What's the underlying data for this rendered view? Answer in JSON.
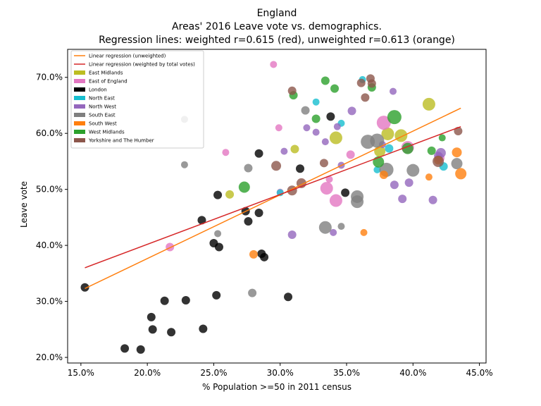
{
  "chart_data": {
    "type": "scatter",
    "title": "England",
    "subtitle": "Areas' 2016 Leave vote vs. demographics.",
    "subtitle2": "Regression lines: weighted r=0.615 (red), unweighted r=0.613 (orange)",
    "xlabel": "% Population >=50 in 2011 census",
    "ylabel": "Leave vote",
    "xlim": [
      14,
      45.5
    ],
    "ylim": [
      19,
      75
    ],
    "x_ticks": [
      "15.0%",
      "20.0%",
      "25.0%",
      "30.0%",
      "35.0%",
      "40.0%",
      "45.0%"
    ],
    "x_tick_values": [
      15,
      20,
      25,
      30,
      35,
      40,
      45
    ],
    "y_ticks": [
      "20.0%",
      "30.0%",
      "40.0%",
      "50.0%",
      "60.0%",
      "70.0%"
    ],
    "y_tick_values": [
      20,
      30,
      40,
      50,
      60,
      70
    ],
    "grid": false,
    "legend_position": "top-left",
    "regression_lines": [
      {
        "name": "Linear regression (unweighted)",
        "color": "#ff7f0e",
        "x": [
          15.3,
          43.6
        ],
        "y": [
          32.3,
          64.5
        ]
      },
      {
        "name": "Linear regression (weighted by total votes)",
        "color": "#d62728",
        "x": [
          15.3,
          43.6
        ],
        "y": [
          36.0,
          61.2
        ]
      }
    ],
    "series": [
      {
        "name": "East Midlands",
        "color": "#bcbd22",
        "points": [
          [
            26.2,
            49.1,
            6
          ],
          [
            31.1,
            57.2,
            6
          ],
          [
            34.2,
            59.2,
            9
          ],
          [
            37.5,
            56.8,
            8
          ],
          [
            38.1,
            59.9,
            9
          ],
          [
            39.1,
            59.6,
            9
          ],
          [
            41.2,
            65.2,
            9
          ]
        ]
      },
      {
        "name": "East of England",
        "color": "#e377c2",
        "points": [
          [
            21.7,
            39.7,
            6
          ],
          [
            25.9,
            56.6,
            5
          ],
          [
            29.5,
            72.3,
            5
          ],
          [
            29.9,
            61.0,
            5
          ],
          [
            30.0,
            49.5,
            5
          ],
          [
            33.5,
            50.2,
            9
          ],
          [
            34.2,
            48.0,
            9
          ],
          [
            33.7,
            51.8,
            5
          ],
          [
            35.3,
            56.2,
            6
          ],
          [
            37.8,
            61.9,
            10
          ],
          [
            39.6,
            57.5,
            9
          ],
          [
            42.0,
            55.6,
            7
          ]
        ]
      },
      {
        "name": "London",
        "color": "#000000",
        "points": [
          [
            15.3,
            32.5,
            6
          ],
          [
            18.3,
            21.6,
            6
          ],
          [
            19.5,
            21.4,
            6
          ],
          [
            20.3,
            27.2,
            6
          ],
          [
            20.4,
            25.0,
            6
          ],
          [
            21.3,
            30.1,
            6
          ],
          [
            21.8,
            24.5,
            6
          ],
          [
            22.9,
            30.2,
            6
          ],
          [
            24.2,
            25.1,
            6
          ],
          [
            24.1,
            44.5,
            6
          ],
          [
            25.0,
            40.4,
            6
          ],
          [
            25.4,
            39.7,
            6
          ],
          [
            25.2,
            31.1,
            6
          ],
          [
            25.3,
            49.0,
            6
          ],
          [
            27.4,
            46.1,
            6
          ],
          [
            27.6,
            44.3,
            6
          ],
          [
            28.4,
            45.8,
            6
          ],
          [
            28.6,
            38.5,
            6
          ],
          [
            28.8,
            37.9,
            6
          ],
          [
            28.4,
            56.4,
            6
          ],
          [
            30.6,
            30.8,
            6
          ],
          [
            31.5,
            53.7,
            6
          ],
          [
            33.8,
            63.0,
            6
          ],
          [
            34.9,
            49.4,
            6
          ]
        ]
      },
      {
        "name": "North East",
        "color": "#17becf",
        "points": [
          [
            30.0,
            49.4,
            5
          ],
          [
            32.7,
            65.6,
            5
          ],
          [
            34.6,
            61.8,
            5
          ],
          [
            36.2,
            69.6,
            5
          ],
          [
            37.3,
            53.5,
            5
          ],
          [
            38.2,
            57.3,
            6
          ],
          [
            42.3,
            54.1,
            6
          ]
        ]
      },
      {
        "name": "North West",
        "color": "#9467bd",
        "points": [
          [
            30.3,
            56.8,
            5
          ],
          [
            32.0,
            61.0,
            5
          ],
          [
            32.7,
            60.2,
            5
          ],
          [
            33.4,
            58.5,
            5
          ],
          [
            34.0,
            42.3,
            5
          ],
          [
            34.3,
            61.2,
            5
          ],
          [
            34.6,
            54.3,
            5
          ],
          [
            35.4,
            64.0,
            6
          ],
          [
            37.7,
            58.0,
            5
          ],
          [
            38.5,
            67.5,
            5
          ],
          [
            38.6,
            50.8,
            6
          ],
          [
            39.2,
            48.3,
            6
          ],
          [
            39.7,
            51.2,
            6
          ],
          [
            30.9,
            41.9,
            6
          ],
          [
            41.5,
            48.1,
            6
          ],
          [
            41.9,
            56.0,
            6
          ],
          [
            42.1,
            56.5,
            7
          ]
        ]
      },
      {
        "name": "South East",
        "color": "#7f7f7f",
        "points": [
          [
            22.8,
            62.5,
            5
          ],
          [
            22.8,
            54.4,
            5
          ],
          [
            25.3,
            42.1,
            5
          ],
          [
            27.6,
            53.8,
            6
          ],
          [
            27.9,
            31.5,
            6
          ],
          [
            31.9,
            64.1,
            6
          ],
          [
            33.4,
            43.2,
            9
          ],
          [
            34.6,
            43.4,
            5
          ],
          [
            35.8,
            48.7,
            9
          ],
          [
            35.8,
            47.8,
            9
          ],
          [
            36.6,
            58.5,
            10
          ],
          [
            37.3,
            58.7,
            10
          ],
          [
            38.0,
            53.5,
            10
          ],
          [
            40.0,
            53.4,
            9
          ],
          [
            43.3,
            54.6,
            8
          ]
        ]
      },
      {
        "name": "South West",
        "color": "#ff7f0e",
        "points": [
          [
            28.0,
            38.4,
            6
          ],
          [
            36.3,
            42.3,
            5
          ],
          [
            37.8,
            52.6,
            6
          ],
          [
            41.2,
            52.2,
            5
          ],
          [
            41.9,
            55.2,
            6
          ],
          [
            43.3,
            56.6,
            7
          ],
          [
            43.6,
            52.8,
            8
          ]
        ]
      },
      {
        "name": "West Midlands",
        "color": "#2ca02c",
        "points": [
          [
            27.3,
            50.4,
            8
          ],
          [
            31.0,
            66.8,
            6
          ],
          [
            32.7,
            62.6,
            6
          ],
          [
            33.4,
            69.4,
            6
          ],
          [
            34.1,
            68.0,
            6
          ],
          [
            36.9,
            68.2,
            6
          ],
          [
            37.4,
            54.9,
            8
          ],
          [
            38.6,
            62.9,
            10
          ],
          [
            39.6,
            57.3,
            8
          ],
          [
            41.4,
            56.9,
            6
          ],
          [
            42.2,
            59.2,
            5
          ]
        ]
      },
      {
        "name": "Yorkshire and The Humber",
        "color": "#8c564b",
        "points": [
          [
            29.7,
            54.2,
            7
          ],
          [
            30.9,
            67.6,
            6
          ],
          [
            30.9,
            49.8,
            7
          ],
          [
            31.6,
            51.1,
            7
          ],
          [
            33.3,
            54.7,
            6
          ],
          [
            36.1,
            69.0,
            6
          ],
          [
            36.4,
            66.4,
            6
          ],
          [
            36.8,
            69.8,
            6
          ],
          [
            36.9,
            68.9,
            6
          ],
          [
            41.9,
            55.0,
            8
          ],
          [
            43.4,
            60.4,
            6
          ]
        ]
      }
    ]
  }
}
